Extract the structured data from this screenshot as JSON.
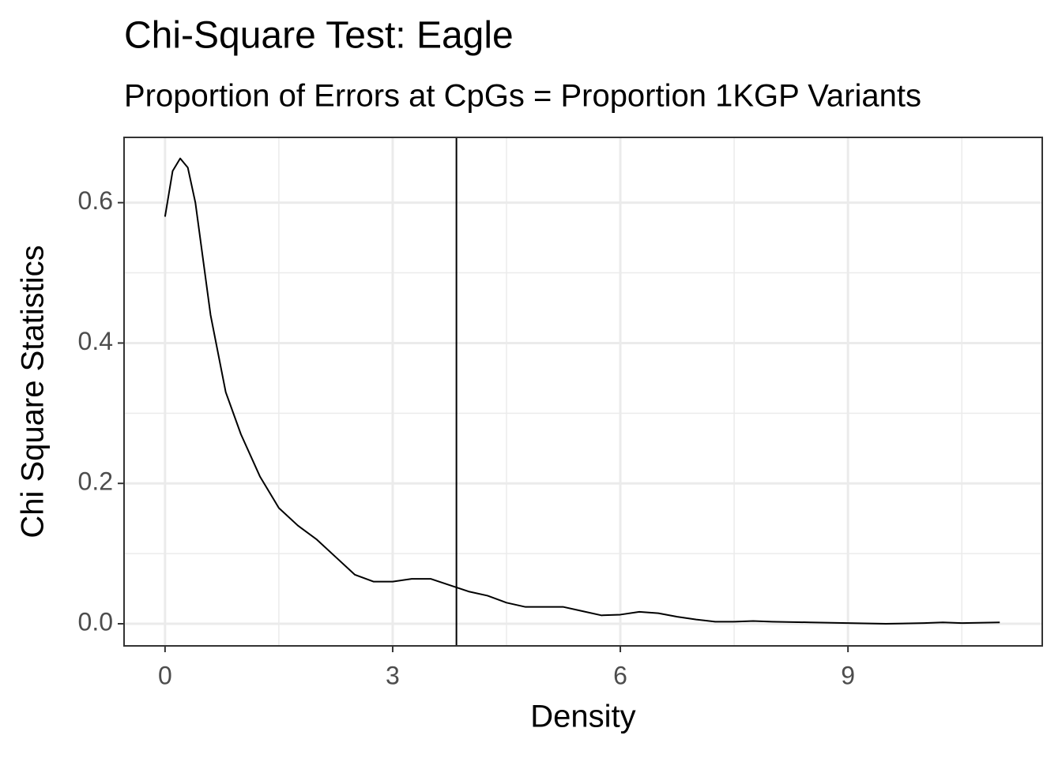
{
  "chart_data": {
    "type": "line",
    "title": "Chi-Square Test: Eagle",
    "subtitle": "Proportion of Errors at CpGs = Proportion 1KGP Variants",
    "x_label": "Density",
    "y_label": "Chi Square Statistics",
    "x": [
      0,
      0.1,
      0.2,
      0.3,
      0.4,
      0.5,
      0.6,
      0.8,
      1.0,
      1.25,
      1.5,
      1.75,
      2.0,
      2.25,
      2.5,
      2.75,
      3.0,
      3.25,
      3.5,
      3.75,
      4.0,
      4.25,
      4.5,
      4.75,
      5.0,
      5.25,
      5.5,
      5.75,
      6.0,
      6.25,
      6.5,
      6.75,
      7.0,
      7.25,
      7.5,
      7.75,
      8.0,
      8.5,
      9.0,
      9.5,
      10.0,
      10.25,
      10.5,
      11.0
    ],
    "series": [
      {
        "color": "#000000",
        "values": [
          0.58,
          0.645,
          0.663,
          0.65,
          0.6,
          0.52,
          0.44,
          0.33,
          0.27,
          0.21,
          0.165,
          0.14,
          0.12,
          0.095,
          0.07,
          0.06,
          0.06,
          0.064,
          0.064,
          0.055,
          0.046,
          0.04,
          0.03,
          0.024,
          0.024,
          0.024,
          0.018,
          0.012,
          0.013,
          0.017,
          0.015,
          0.01,
          0.006,
          0.003,
          0.003,
          0.004,
          0.003,
          0.002,
          0.001,
          0,
          0.001,
          0.002,
          0.001,
          0.002
        ]
      }
    ],
    "vline": 3.84,
    "xlim": [
      -0.54,
      11.56
    ],
    "ylim": [
      -0.0315,
      0.693
    ],
    "xticks": [
      0,
      3,
      6,
      9
    ],
    "yticks": [
      {
        "value": 0,
        "label": "0.0"
      },
      0.2,
      0.4,
      0.6
    ],
    "grid": true
  }
}
